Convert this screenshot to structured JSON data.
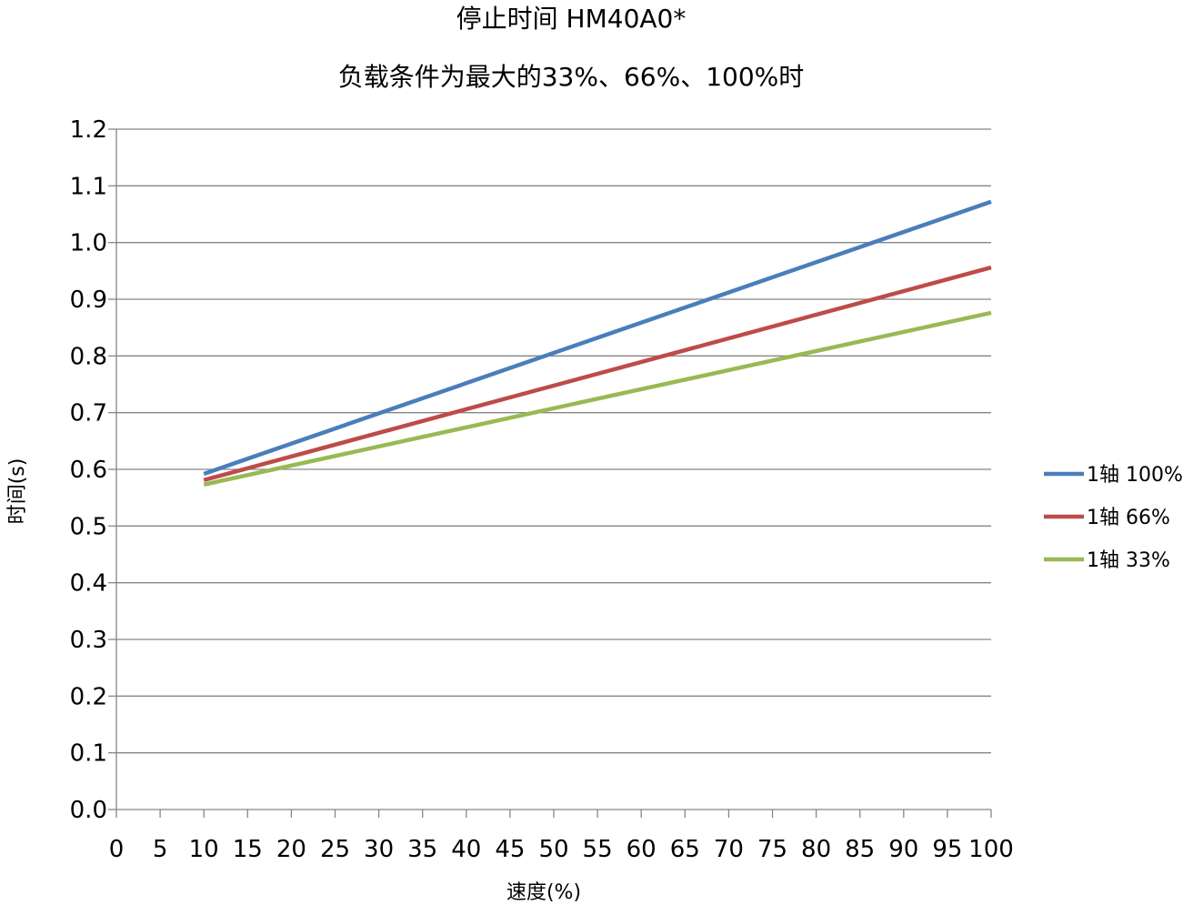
{
  "chart_data": {
    "type": "line",
    "title": "停止时间 HM40A0*",
    "subtitle": "负载条件为最大的33%、66%、100%时",
    "xlabel": "速度(%)",
    "ylabel": "时间(s)",
    "xlim": [
      0,
      100
    ],
    "ylim": [
      0,
      1.2
    ],
    "x_ticks": [
      "0",
      "5",
      "10",
      "15",
      "20",
      "25",
      "30",
      "35",
      "40",
      "45",
      "50",
      "55",
      "60",
      "65",
      "70",
      "75",
      "80",
      "85",
      "90",
      "95",
      "100"
    ],
    "y_ticks": [
      "0.0",
      "0.1",
      "0.2",
      "0.3",
      "0.4",
      "0.5",
      "0.6",
      "0.7",
      "0.8",
      "0.9",
      "1.0",
      "1.1",
      "1.2"
    ],
    "grid": "horizontal",
    "legend": "right",
    "series": [
      {
        "name": "1轴 100%",
        "color": "#4A7EBB",
        "x": [
          10,
          100
        ],
        "y": [
          0.592,
          1.072
        ]
      },
      {
        "name": "1轴 66%",
        "color": "#BE4B48",
        "x": [
          10,
          100
        ],
        "y": [
          0.581,
          0.956
        ]
      },
      {
        "name": "1轴 33%",
        "color": "#98B954",
        "x": [
          10,
          100
        ],
        "y": [
          0.573,
          0.876
        ]
      }
    ]
  }
}
